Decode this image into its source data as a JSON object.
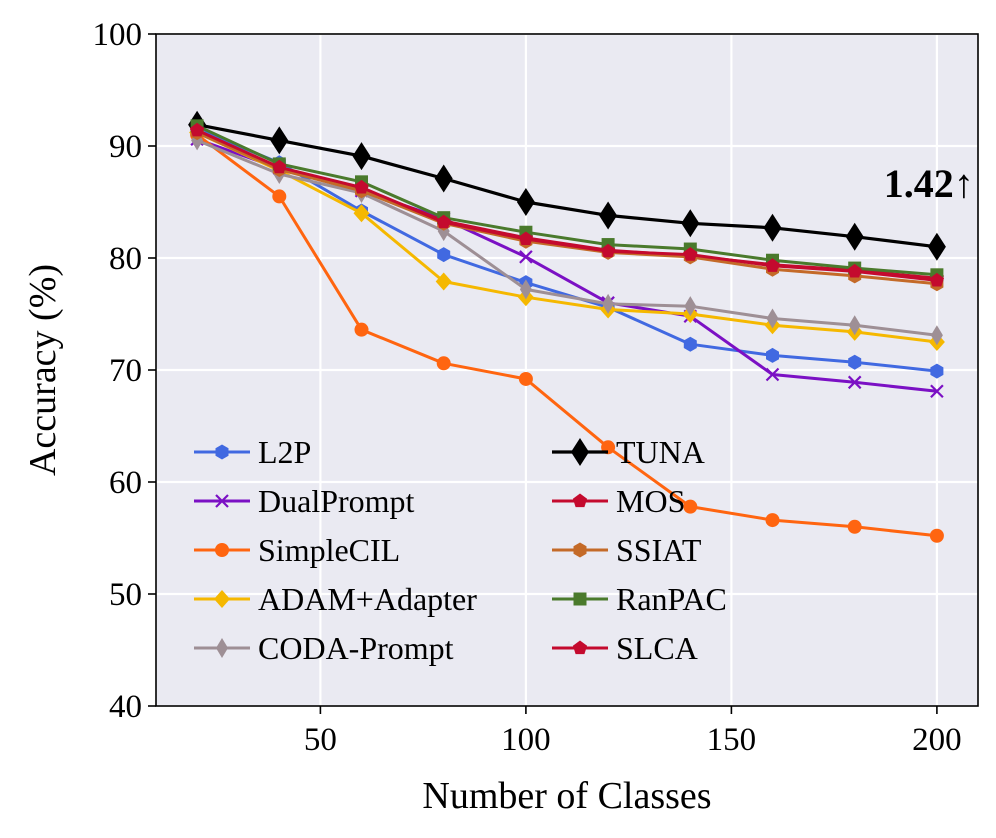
{
  "chart_data": {
    "type": "line",
    "title": "",
    "xlabel": "Number of Classes",
    "ylabel": "Accuracy (%)",
    "xlim": [
      10,
      210
    ],
    "ylim": [
      40,
      100
    ],
    "x_ticks": [
      50,
      100,
      150,
      200
    ],
    "y_ticks": [
      40,
      50,
      60,
      70,
      80,
      90,
      100
    ],
    "grid": true,
    "background": "#eaeaf2",
    "legend_position": "lower-left",
    "x": [
      20,
      40,
      60,
      80,
      100,
      120,
      140,
      160,
      180,
      200
    ],
    "annotation": {
      "text": "1.42↑",
      "x": 190,
      "y": 86.5
    },
    "series": [
      {
        "name": "L2P",
        "color": "#4169e1",
        "marker": "hexagon",
        "values": [
          91.5,
          88.5,
          84.2,
          80.3,
          77.8,
          75.6,
          72.3,
          71.3,
          70.7,
          69.9
        ]
      },
      {
        "name": "DualPrompt",
        "color": "#7b10c4",
        "marker": "x",
        "values": [
          90.6,
          88.0,
          86.0,
          83.5,
          80.1,
          76.0,
          74.8,
          69.6,
          68.9,
          68.1
        ]
      },
      {
        "name": "SimpleCIL",
        "color": "#ff6510",
        "marker": "circle",
        "values": [
          91.0,
          85.5,
          73.6,
          70.6,
          69.2,
          63.1,
          57.8,
          56.6,
          56.0,
          55.2
        ]
      },
      {
        "name": "ADAM+Adapter",
        "color": "#f5b800",
        "marker": "diamond",
        "values": [
          91.2,
          87.8,
          84.0,
          77.9,
          76.5,
          75.4,
          75.0,
          74.0,
          73.4,
          72.5
        ]
      },
      {
        "name": "CODA-Prompt",
        "color": "#9e8f95",
        "marker": "thin_diamond",
        "values": [
          90.5,
          87.5,
          85.8,
          82.4,
          77.2,
          75.9,
          75.7,
          74.6,
          74.0,
          73.1
        ]
      },
      {
        "name": "TUNA",
        "color": "#000000",
        "marker": "big_diamond",
        "values": [
          91.9,
          90.5,
          89.1,
          87.1,
          85.0,
          83.8,
          83.1,
          82.7,
          81.9,
          81.0
        ]
      },
      {
        "name": "MOS",
        "color": "#c40a2e",
        "marker": "pentagon",
        "values": [
          91.3,
          88.0,
          86.2,
          83.3,
          81.8,
          80.7,
          80.2,
          79.4,
          78.9,
          78.2
        ]
      },
      {
        "name": "SSIAT",
        "color": "#c46a28",
        "marker": "hexagon",
        "values": [
          91.2,
          87.9,
          86.0,
          83.1,
          81.5,
          80.5,
          80.1,
          79.0,
          78.4,
          77.7
        ]
      },
      {
        "name": "RanPAC",
        "color": "#4a7a2c",
        "marker": "square",
        "values": [
          91.8,
          88.4,
          86.8,
          83.6,
          82.3,
          81.2,
          80.8,
          79.8,
          79.1,
          78.5
        ]
      },
      {
        "name": "SLCA",
        "color": "#c40a2e",
        "marker": "pentagon",
        "values": [
          91.4,
          88.1,
          86.3,
          83.2,
          81.7,
          80.6,
          80.3,
          79.3,
          78.8,
          78.0
        ]
      }
    ]
  }
}
